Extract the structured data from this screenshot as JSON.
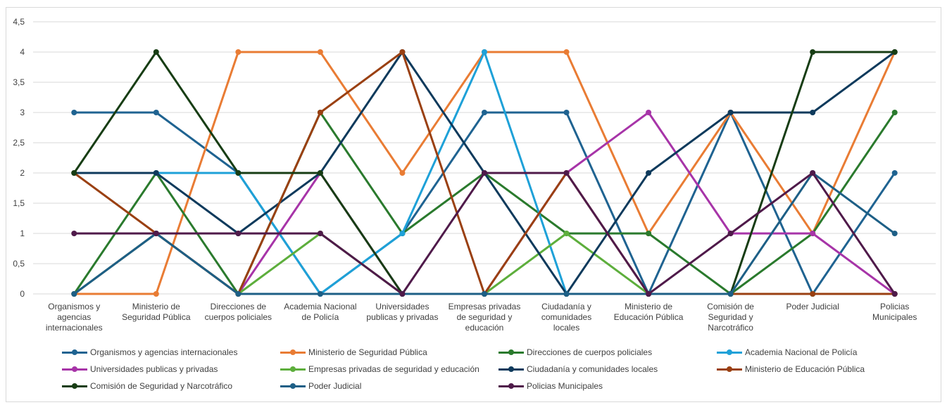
{
  "chart_data": {
    "type": "line",
    "title": "",
    "xlabel": "",
    "ylabel": "",
    "ylim": [
      0,
      4.5
    ],
    "yticks": [
      "0",
      "0,5",
      "1",
      "1,5",
      "2",
      "2,5",
      "3",
      "3,5",
      "4",
      "4,5"
    ],
    "grid": true,
    "legend_position": "bottom",
    "categories": [
      [
        "Organismos y",
        "agencias",
        "internacionales"
      ],
      [
        "Ministerio de",
        "Seguridad Pública"
      ],
      [
        "Direcciones de",
        "cuerpos policiales"
      ],
      [
        "Academia Nacional",
        "de Policía"
      ],
      [
        "Universidades",
        "publicas y privadas"
      ],
      [
        "Empresas privadas",
        "de seguridad y",
        "educación"
      ],
      [
        "Ciudadanía y",
        "comunidades",
        "locales"
      ],
      [
        "Ministerio de",
        "Educación Pública"
      ],
      [
        "Comisión de",
        "Seguridad y",
        "Narcotráfico"
      ],
      [
        "Poder Judicial"
      ],
      [
        "Policias",
        "Municipales"
      ]
    ],
    "series": [
      {
        "name": "Organismos y agencias internacionales",
        "color": "#1f6391",
        "values": [
          3,
          3,
          2,
          0,
          1,
          3,
          3,
          0,
          3,
          0,
          2
        ]
      },
      {
        "name": "Ministerio de Seguridad Pública",
        "color": "#e97c34",
        "values": [
          0,
          0,
          4,
          4,
          2,
          4,
          4,
          1,
          3,
          1,
          4
        ]
      },
      {
        "name": "Direcciones de cuerpos policiales",
        "color": "#2a7a2d",
        "values": [
          0,
          2,
          0,
          3,
          1,
          2,
          1,
          1,
          0,
          1,
          3
        ]
      },
      {
        "name": "Academia Nacional de Policía",
        "color": "#1ea1d8",
        "values": [
          2,
          2,
          2,
          0,
          1,
          4,
          0,
          0,
          0,
          0,
          0
        ]
      },
      {
        "name": "Universidades publicas y privadas",
        "color": "#a734a8",
        "values": [
          0,
          1,
          0,
          2,
          0,
          0,
          2,
          3,
          1,
          1,
          0
        ]
      },
      {
        "name": "Empresas privadas de seguridad y educación",
        "color": "#5dae3c",
        "values": [
          0,
          1,
          0,
          1,
          0,
          0,
          1,
          0,
          0,
          0,
          0
        ]
      },
      {
        "name": "Ciudadanía y comunidades locales",
        "color": "#0e3a5c",
        "values": [
          2,
          2,
          1,
          2,
          4,
          2,
          0,
          2,
          3,
          3,
          4
        ]
      },
      {
        "name": "Ministerio de Educación Pública",
        "color": "#9a4012",
        "values": [
          2,
          1,
          0,
          3,
          4,
          0,
          2,
          0,
          0,
          0,
          0
        ]
      },
      {
        "name": "Comisión de Seguridad y Narcotráfico",
        "color": "#173d14",
        "values": [
          2,
          4,
          2,
          2,
          0,
          0,
          0,
          0,
          0,
          4,
          4
        ]
      },
      {
        "name": "Poder Judicial",
        "color": "#1d5f86",
        "values": [
          0,
          1,
          0,
          0,
          0,
          0,
          0,
          0,
          0,
          2,
          1
        ]
      },
      {
        "name": "Policias Municipales",
        "color": "#4f1a4a",
        "values": [
          1,
          1,
          1,
          1,
          0,
          2,
          2,
          0,
          1,
          2,
          0
        ]
      }
    ]
  }
}
